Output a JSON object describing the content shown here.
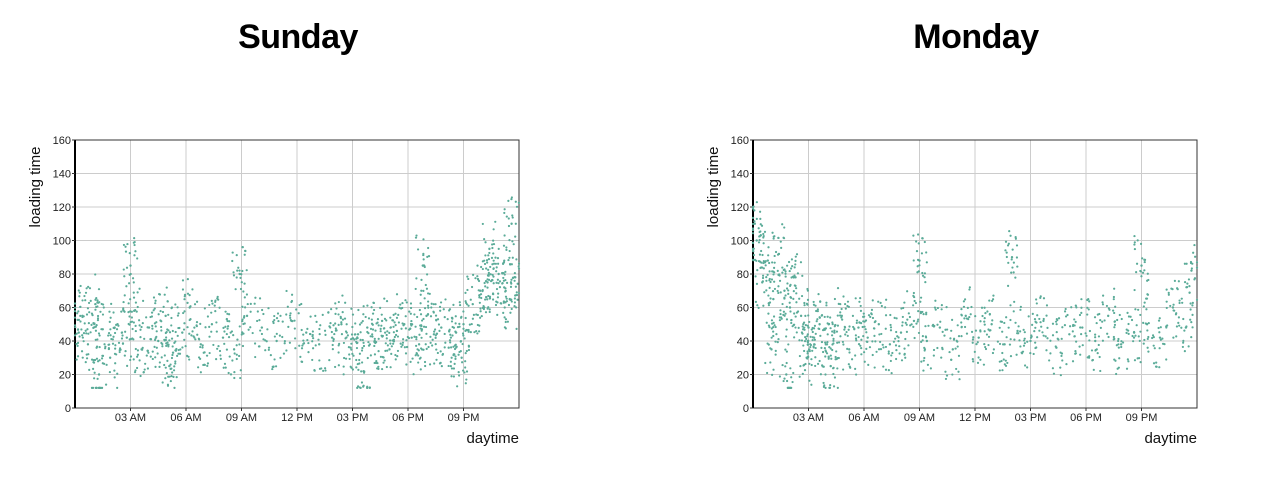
{
  "chart_data": [
    {
      "type": "scatter",
      "title": "Sunday",
      "xlabel": "daytime",
      "ylabel": "loading time",
      "xlim": [
        0,
        24
      ],
      "ylim": [
        0,
        160
      ],
      "xticks": [
        3,
        6,
        9,
        12,
        15,
        18,
        21
      ],
      "xtick_labels": [
        "03 AM",
        "06 AM",
        "09 AM",
        "12 PM",
        "03 PM",
        "06 PM",
        "09 PM"
      ],
      "yticks": [
        0,
        20,
        40,
        60,
        80,
        100,
        120,
        140,
        160
      ],
      "grid": true,
      "color": "#5aab98",
      "x": [
        0.2,
        0.4,
        0.7,
        1.1,
        1.5,
        1.9,
        2.3,
        2.8,
        3.2,
        3.6,
        4.0,
        4.5,
        4.9,
        5.3,
        5.8,
        6.2,
        6.8,
        7.4,
        8.0,
        8.6,
        9.3,
        10.1,
        10.9,
        11.7,
        12.5,
        13.2,
        13.9,
        14.4,
        14.9,
        15.3,
        15.8,
        16.2,
        16.6,
        17.0,
        17.4,
        17.8,
        18.2,
        18.6,
        19.0,
        19.4,
        19.8,
        20.2,
        20.6,
        21.0,
        21.5,
        21.9,
        22.3,
        22.6,
        22.9,
        23.2,
        23.5,
        23.8,
        1.3,
        3.0,
        5.1,
        8.9,
        15.6,
        18.8,
        20.9,
        22.4,
        23.6
      ],
      "y": [
        45,
        55,
        38,
        62,
        47,
        30,
        50,
        42,
        58,
        35,
        48,
        40,
        55,
        33,
        45,
        60,
        38,
        50,
        42,
        35,
        55,
        48,
        40,
        52,
        45,
        38,
        42,
        50,
        36,
        44,
        48,
        40,
        52,
        35,
        46,
        50,
        42,
        38,
        55,
        44,
        48,
        36,
        45,
        50,
        62,
        70,
        75,
        68,
        80,
        72,
        65,
        78,
        20,
        85,
        25,
        80,
        22,
        85,
        30,
        95,
        110
      ],
      "series_note": ""
    },
    {
      "type": "scatter",
      "title": "Monday",
      "xlabel": "daytime",
      "ylabel": "loading time",
      "xlim": [
        0,
        24
      ],
      "ylim": [
        0,
        160
      ],
      "xticks": [
        3,
        6,
        9,
        12,
        15,
        18,
        21
      ],
      "xtick_labels": [
        "03 AM",
        "06 AM",
        "09 AM",
        "12 PM",
        "03 PM",
        "06 PM",
        "09 PM"
      ],
      "yticks": [
        0,
        20,
        40,
        60,
        80,
        100,
        120,
        140,
        160
      ],
      "grid": true,
      "color": "#5aab98",
      "x": [
        0.2,
        0.5,
        0.8,
        1.1,
        1.4,
        1.7,
        2.0,
        2.3,
        2.6,
        3.0,
        3.3,
        3.6,
        4.0,
        4.4,
        4.8,
        5.2,
        5.7,
        6.2,
        6.8,
        7.4,
        8.0,
        8.7,
        9.4,
        10.1,
        10.8,
        11.5,
        12.2,
        12.9,
        13.6,
        14.3,
        15.0,
        15.7,
        16.4,
        17.1,
        17.8,
        18.5,
        19.2,
        19.9,
        20.6,
        21.3,
        22.0,
        22.7,
        23.4,
        0.1,
        1.0,
        1.8,
        2.9,
        4.2,
        9.0,
        14.0,
        21.0,
        23.7
      ],
      "y": [
        100,
        75,
        88,
        65,
        92,
        70,
        60,
        78,
        55,
        48,
        42,
        50,
        38,
        45,
        55,
        35,
        48,
        42,
        50,
        38,
        45,
        52,
        40,
        48,
        35,
        55,
        42,
        50,
        38,
        46,
        40,
        52,
        36,
        44,
        48,
        40,
        55,
        38,
        45,
        50,
        42,
        60,
        48,
        110,
        35,
        20,
        30,
        25,
        88,
        90,
        85,
        82
      ],
      "series_note": ""
    }
  ]
}
